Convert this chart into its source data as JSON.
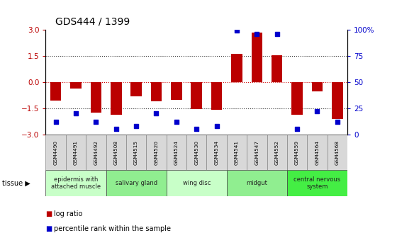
{
  "title": "GDS444 / 1399",
  "samples": [
    "GSM4490",
    "GSM4491",
    "GSM4492",
    "GSM4508",
    "GSM4515",
    "GSM4520",
    "GSM4524",
    "GSM4530",
    "GSM4534",
    "GSM4541",
    "GSM4547",
    "GSM4552",
    "GSM4559",
    "GSM4564",
    "GSM4568"
  ],
  "log_ratio": [
    -1.05,
    -0.35,
    -1.75,
    -1.85,
    -0.8,
    -1.1,
    -1.0,
    -1.55,
    -1.6,
    1.6,
    2.85,
    1.55,
    -1.85,
    -0.55,
    -2.1
  ],
  "percentile": [
    12,
    20,
    12,
    5,
    8,
    20,
    12,
    5,
    8,
    99,
    96,
    96,
    5,
    22,
    12
  ],
  "tissue_groups": [
    {
      "label": "epidermis with\nattached muscle",
      "start": 0,
      "end": 3,
      "color": "#c8ffc8"
    },
    {
      "label": "salivary gland",
      "start": 3,
      "end": 6,
      "color": "#90ee90"
    },
    {
      "label": "wing disc",
      "start": 6,
      "end": 9,
      "color": "#c8ffc8"
    },
    {
      "label": "midgut",
      "start": 9,
      "end": 12,
      "color": "#90ee90"
    },
    {
      "label": "central nervous\nsystem",
      "start": 12,
      "end": 15,
      "color": "#44ee44"
    }
  ],
  "bar_color": "#bb0000",
  "dot_color": "#0000cc",
  "ylim": [
    -3,
    3
  ],
  "y2lim": [
    0,
    100
  ],
  "y_ticks": [
    -3,
    -1.5,
    0,
    1.5,
    3
  ],
  "y2_ticks": [
    0,
    25,
    50,
    75,
    100
  ],
  "y2_labels": [
    "0",
    "25",
    "50",
    "75",
    "100%"
  ],
  "hline_color": "#cc0000",
  "dotted_color": "#333333",
  "sample_box_color": "#d8d8d8",
  "bg_color": "#ffffff"
}
